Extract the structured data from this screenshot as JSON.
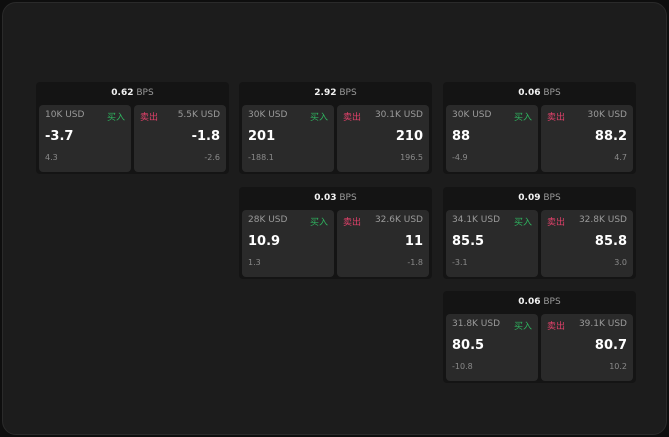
{
  "unit": "BPS",
  "buy_label": "买入",
  "sell_label": "卖出",
  "colors": {
    "buy": "#2fb35f",
    "sell": "#e0416a"
  },
  "cards": [
    {
      "spread": "0.62",
      "buy": {
        "size": "10K USD",
        "price": "-3.7",
        "change": "4.3"
      },
      "sell": {
        "size": "5.5K USD",
        "price": "-1.8",
        "change": "-2.6"
      }
    },
    {
      "spread": "2.92",
      "buy": {
        "size": "30K USD",
        "price": "201",
        "change": "-188.1"
      },
      "sell": {
        "size": "30.1K USD",
        "price": "210",
        "change": "196.5"
      }
    },
    {
      "spread": "0.06",
      "buy": {
        "size": "30K USD",
        "price": "88",
        "change": "-4.9"
      },
      "sell": {
        "size": "30K USD",
        "price": "88.2",
        "change": "4.7"
      }
    },
    {
      "spread": "0.03",
      "buy": {
        "size": "28K USD",
        "price": "10.9",
        "change": "1.3"
      },
      "sell": {
        "size": "32.6K USD",
        "price": "11",
        "change": "-1.8"
      }
    },
    {
      "spread": "0.09",
      "buy": {
        "size": "34.1K USD",
        "price": "85.5",
        "change": "-3.1"
      },
      "sell": {
        "size": "32.8K USD",
        "price": "85.8",
        "change": "3.0"
      }
    },
    {
      "spread": "0.06",
      "buy": {
        "size": "31.8K USD",
        "price": "80.5",
        "change": "-10.8"
      },
      "sell": {
        "size": "39.1K USD",
        "price": "80.7",
        "change": "10.2"
      }
    }
  ]
}
